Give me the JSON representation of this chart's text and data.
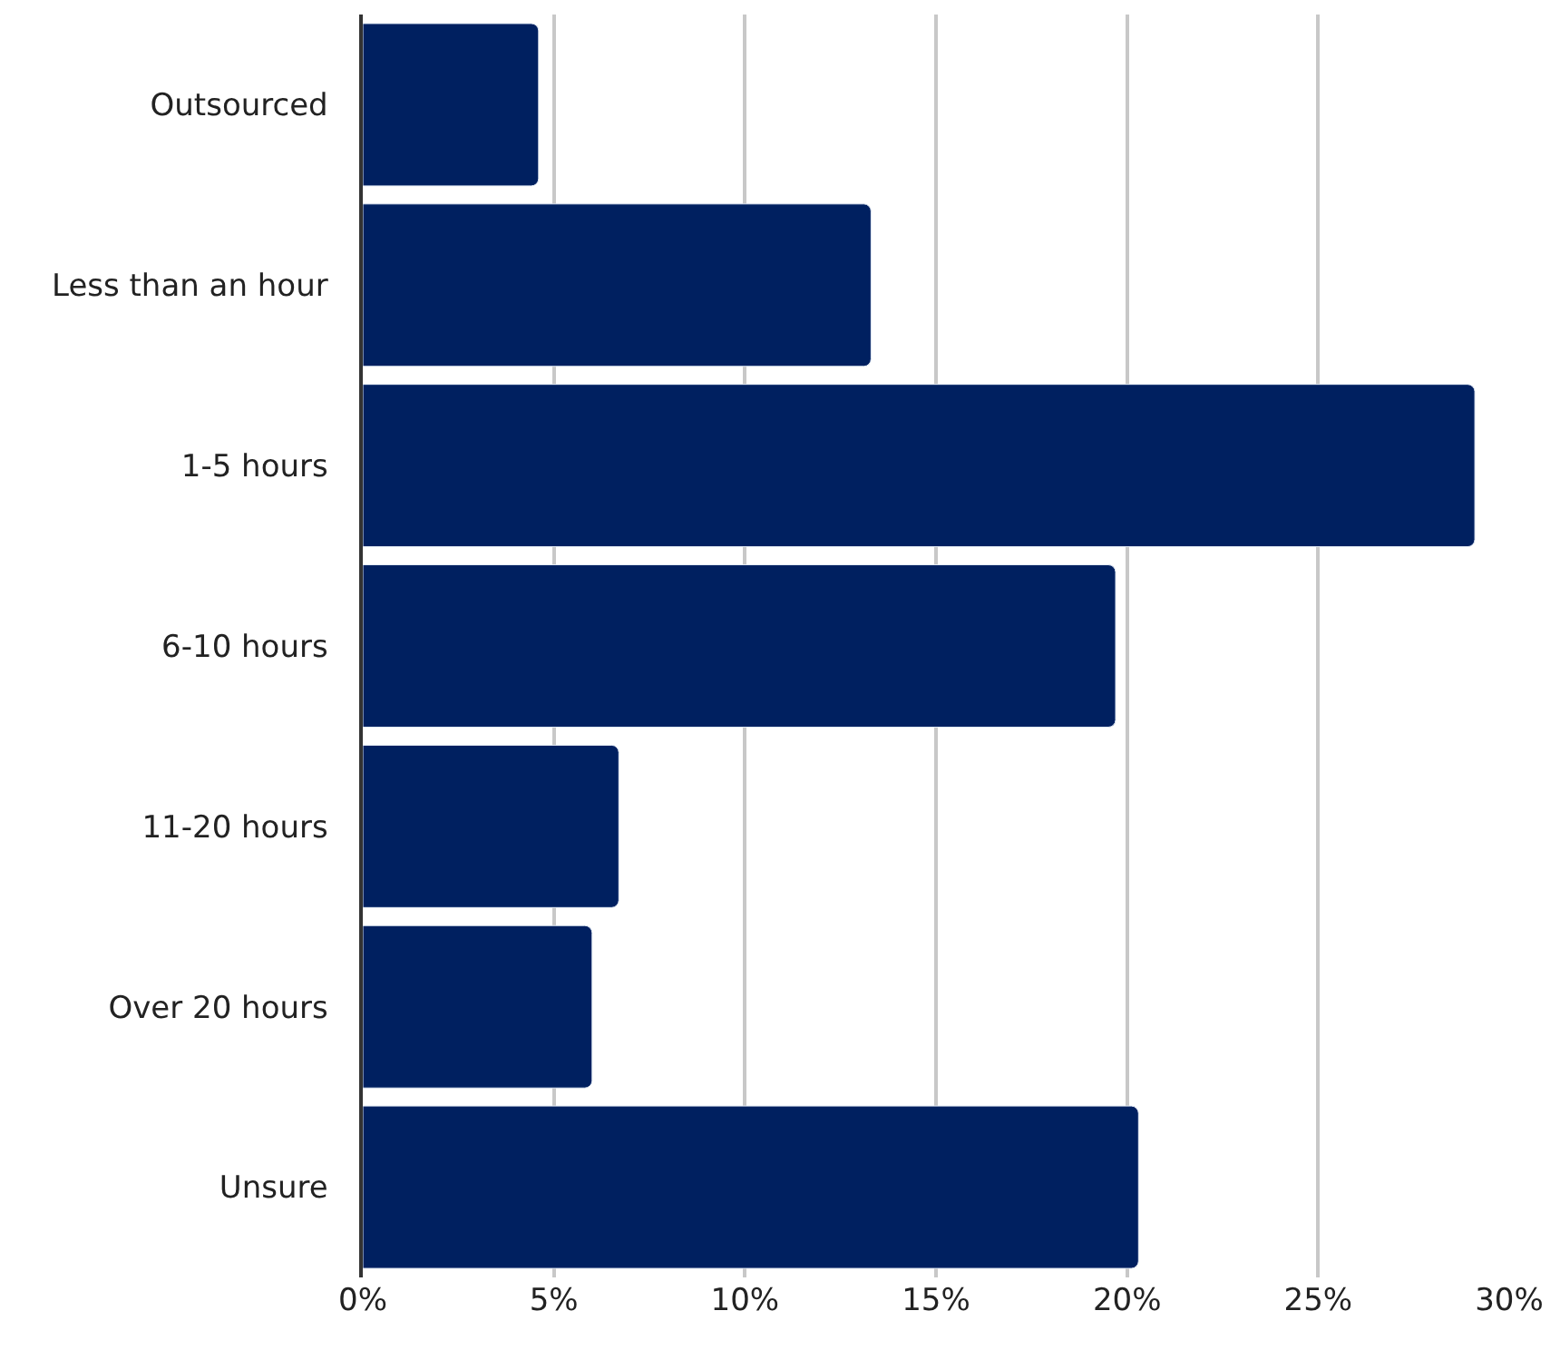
{
  "chart_data": {
    "type": "bar",
    "orientation": "horizontal",
    "categories": [
      "Outsourced",
      "Less than an hour",
      "1-5 hours",
      "6-10 hours",
      "11-20 hours",
      "Over 20 hours",
      "Unsure"
    ],
    "values": [
      4.6,
      13.3,
      29.1,
      19.7,
      6.7,
      6.0,
      20.3
    ],
    "color": "#002060",
    "xlim": [
      0,
      30
    ],
    "xticks": [
      {
        "value": 0,
        "label": "0%"
      },
      {
        "value": 5,
        "label": "5%"
      },
      {
        "value": 10,
        "label": "10%"
      },
      {
        "value": 15,
        "label": "15%"
      },
      {
        "value": 20,
        "label": "20%"
      },
      {
        "value": 25,
        "label": "25%"
      },
      {
        "value": 30,
        "label": "30%"
      }
    ],
    "grid": "x"
  }
}
